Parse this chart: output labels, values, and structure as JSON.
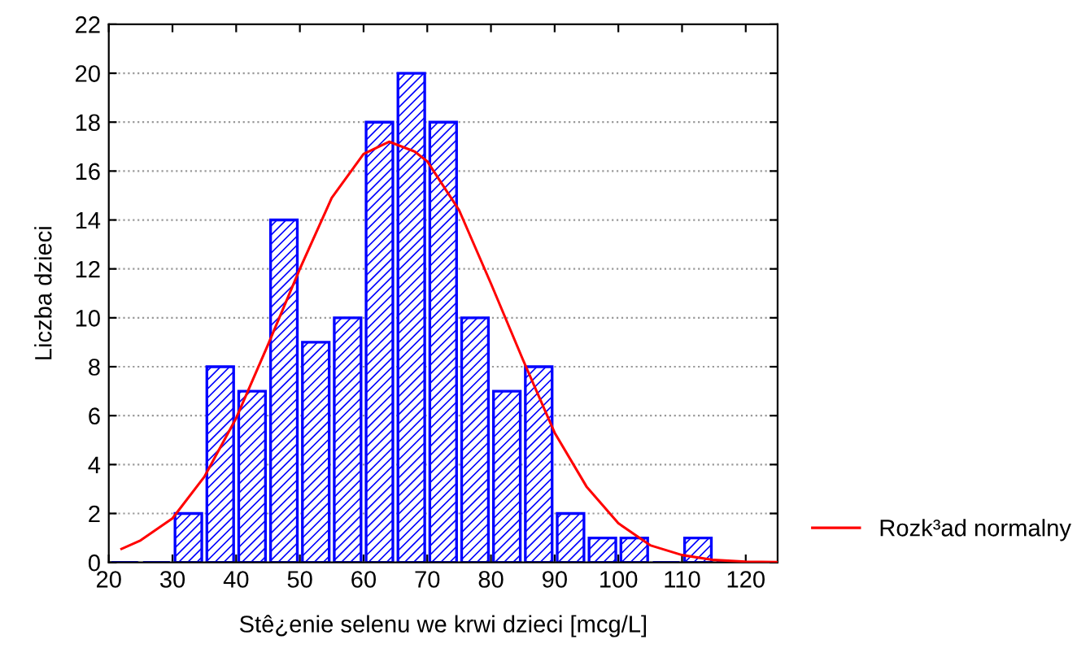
{
  "chart_data": {
    "type": "histogram",
    "xlabel": "Stê¿enie selenu we krwi dzieci [mcg/L]",
    "ylabel": "Liczba dzieci",
    "bins": [
      20,
      25,
      30,
      35,
      40,
      45,
      50,
      55,
      60,
      65,
      70,
      75,
      80,
      85,
      90,
      95,
      100,
      105,
      110,
      115,
      120
    ],
    "series": [
      {
        "color": "#0000ff",
        "values": [
          0,
          0,
          2,
          8,
          7,
          14,
          9,
          10,
          18,
          20,
          18,
          10,
          7,
          8,
          2,
          1,
          1,
          0,
          1,
          0
        ]
      },
      {
        "type": "line",
        "name": "Rozk³ad normalny",
        "color": "#ff0000",
        "x": [
          22,
          25,
          30,
          35,
          40,
          45,
          50,
          55,
          60,
          64,
          68,
          70,
          75,
          80,
          85,
          90,
          95,
          100,
          105,
          110,
          115,
          120,
          125
        ],
        "values": [
          0.55,
          0.9,
          1.8,
          3.5,
          5.9,
          8.9,
          12.0,
          14.9,
          16.7,
          17.2,
          16.8,
          16.4,
          14.4,
          11.4,
          8.3,
          5.3,
          3.1,
          1.6,
          0.7,
          0.3,
          0.1,
          0.03,
          0.01
        ]
      }
    ],
    "xlim": [
      20,
      125
    ],
    "xticks": [
      20,
      30,
      40,
      50,
      60,
      70,
      80,
      90,
      100,
      110,
      120
    ],
    "ylim": [
      0,
      22
    ],
    "yticks": [
      0,
      2,
      4,
      6,
      8,
      10,
      12,
      14,
      16,
      18,
      20,
      22
    ],
    "grid": "y",
    "legend": "bottom right"
  }
}
